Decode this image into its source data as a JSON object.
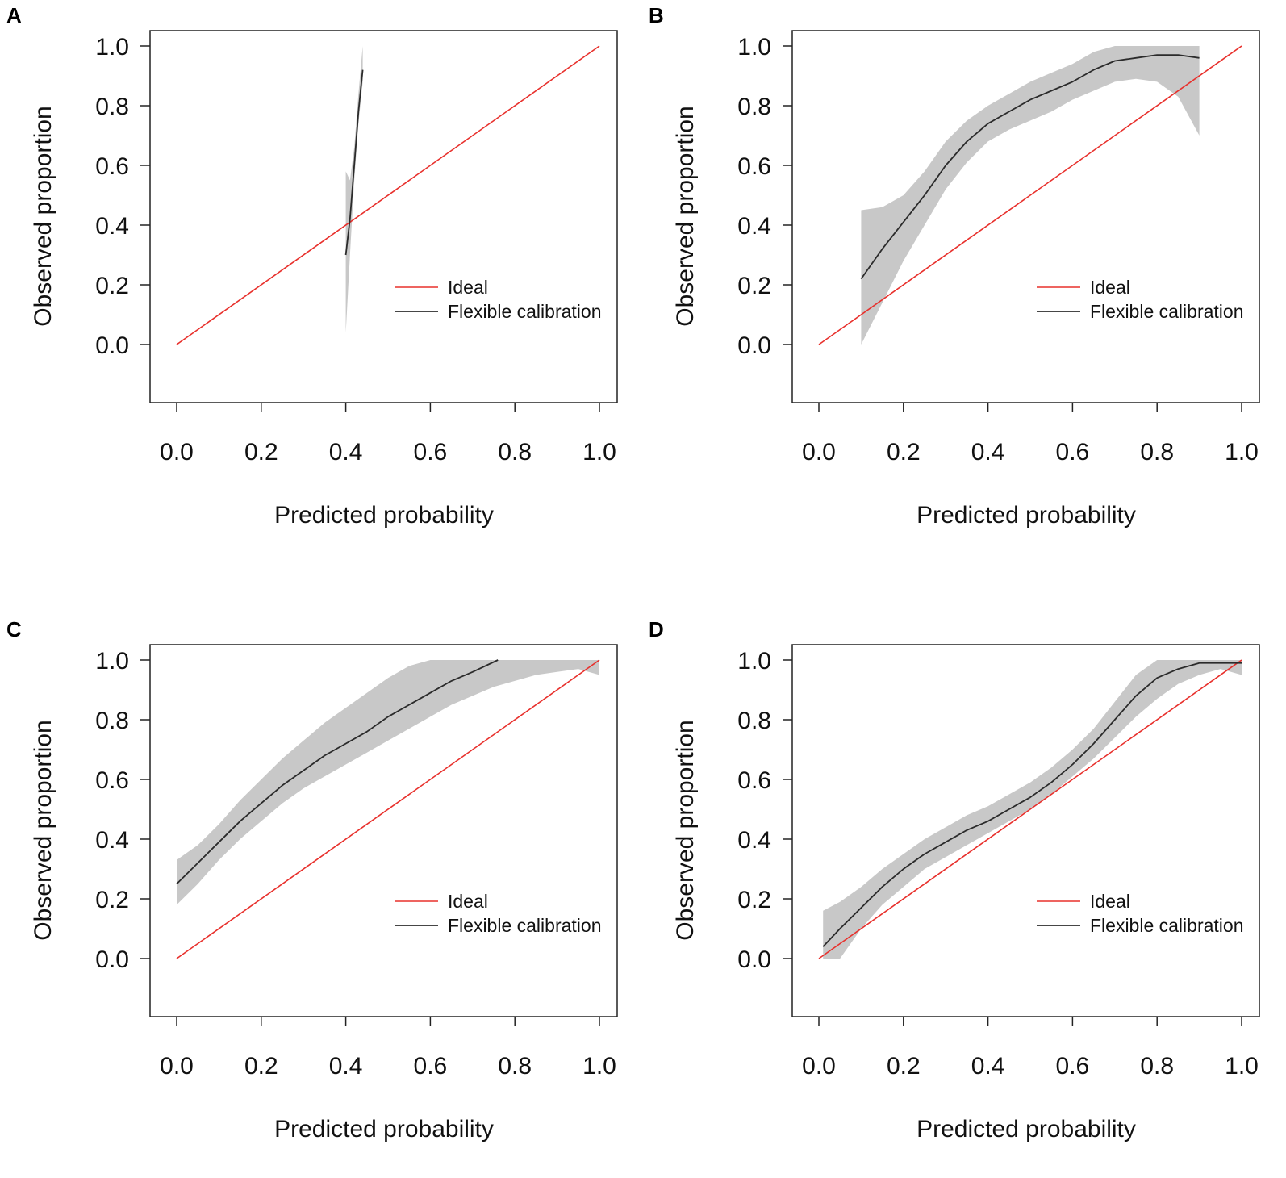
{
  "figure": {
    "colors": {
      "ideal": "#e8302c",
      "flexible": "#2b2b2b",
      "band": "#c8c8c8",
      "frame": "#222222"
    }
  },
  "chart_data": [
    {
      "panel": "A",
      "type": "line",
      "xlabel": "Predicted probability",
      "ylabel": "Observed proportion",
      "xlim": [
        -0.06,
        1.04
      ],
      "ylim": [
        -0.19,
        1.05
      ],
      "xticks": [
        "0.0",
        "0.2",
        "0.4",
        "0.6",
        "0.8",
        "1.0"
      ],
      "yticks": [
        "0.0",
        "0.2",
        "0.4",
        "0.6",
        "0.8",
        "1.0"
      ],
      "legend": {
        "position": "bottom-right",
        "entries": [
          "Ideal",
          "Flexible calibration"
        ]
      },
      "series": [
        {
          "name": "Ideal",
          "x": [
            0.0,
            1.0
          ],
          "y": [
            0.0,
            1.0
          ]
        },
        {
          "name": "Flexible calibration",
          "x": [
            0.4,
            0.41,
            0.42,
            0.43,
            0.44
          ],
          "y": [
            0.3,
            0.42,
            0.6,
            0.78,
            0.92
          ]
        },
        {
          "name": "confidence band",
          "x": [
            0.4,
            0.41,
            0.42,
            0.43,
            0.44
          ],
          "lower": [
            0.04,
            0.3,
            0.55,
            0.74,
            0.88
          ],
          "upper": [
            0.58,
            0.55,
            0.66,
            0.84,
            1.0
          ]
        }
      ]
    },
    {
      "panel": "B",
      "type": "line",
      "xlabel": "Predicted probability",
      "ylabel": "Observed proportion",
      "xlim": [
        -0.06,
        1.04
      ],
      "ylim": [
        -0.19,
        1.05
      ],
      "xticks": [
        "0.0",
        "0.2",
        "0.4",
        "0.6",
        "0.8",
        "1.0"
      ],
      "yticks": [
        "0.0",
        "0.2",
        "0.4",
        "0.6",
        "0.8",
        "1.0"
      ],
      "legend": {
        "position": "bottom-right",
        "entries": [
          "Ideal",
          "Flexible calibration"
        ]
      },
      "series": [
        {
          "name": "Ideal",
          "x": [
            0.0,
            1.0
          ],
          "y": [
            0.0,
            1.0
          ]
        },
        {
          "name": "Flexible calibration",
          "x": [
            0.1,
            0.15,
            0.2,
            0.25,
            0.3,
            0.35,
            0.4,
            0.45,
            0.5,
            0.55,
            0.6,
            0.65,
            0.7,
            0.75,
            0.8,
            0.85,
            0.9
          ],
          "y": [
            0.22,
            0.32,
            0.41,
            0.5,
            0.6,
            0.68,
            0.74,
            0.78,
            0.82,
            0.85,
            0.88,
            0.92,
            0.95,
            0.96,
            0.97,
            0.97,
            0.96
          ]
        },
        {
          "name": "confidence band",
          "x": [
            0.1,
            0.15,
            0.2,
            0.25,
            0.3,
            0.35,
            0.4,
            0.45,
            0.5,
            0.55,
            0.6,
            0.65,
            0.7,
            0.75,
            0.8,
            0.85,
            0.9
          ],
          "lower": [
            0.0,
            0.14,
            0.28,
            0.4,
            0.52,
            0.61,
            0.68,
            0.72,
            0.75,
            0.78,
            0.82,
            0.85,
            0.88,
            0.89,
            0.88,
            0.83,
            0.7
          ],
          "upper": [
            0.45,
            0.46,
            0.5,
            0.58,
            0.68,
            0.75,
            0.8,
            0.84,
            0.88,
            0.91,
            0.94,
            0.98,
            1.0,
            1.0,
            1.0,
            1.0,
            1.0
          ]
        }
      ]
    },
    {
      "panel": "C",
      "type": "line",
      "xlabel": "Predicted probability",
      "ylabel": "Observed proportion",
      "xlim": [
        -0.06,
        1.04
      ],
      "ylim": [
        -0.19,
        1.05
      ],
      "xticks": [
        "0.0",
        "0.2",
        "0.4",
        "0.6",
        "0.8",
        "1.0"
      ],
      "yticks": [
        "0.0",
        "0.2",
        "0.4",
        "0.6",
        "0.8",
        "1.0"
      ],
      "legend": {
        "position": "bottom-right",
        "entries": [
          "Ideal",
          "Flexible calibration"
        ]
      },
      "series": [
        {
          "name": "Ideal",
          "x": [
            0.0,
            1.0
          ],
          "y": [
            0.0,
            1.0
          ]
        },
        {
          "name": "Flexible calibration",
          "x": [
            0.0,
            0.05,
            0.1,
            0.15,
            0.2,
            0.25,
            0.3,
            0.35,
            0.4,
            0.45,
            0.5,
            0.55,
            0.6,
            0.65,
            0.7,
            0.76
          ],
          "y": [
            0.25,
            0.32,
            0.39,
            0.46,
            0.52,
            0.58,
            0.63,
            0.68,
            0.72,
            0.76,
            0.81,
            0.85,
            0.89,
            0.93,
            0.96,
            1.0
          ]
        },
        {
          "name": "confidence band",
          "x": [
            0.0,
            0.05,
            0.1,
            0.15,
            0.2,
            0.25,
            0.3,
            0.35,
            0.4,
            0.45,
            0.5,
            0.55,
            0.6,
            0.65,
            0.7,
            0.75,
            0.8,
            0.85,
            0.9,
            0.95,
            1.0
          ],
          "lower": [
            0.18,
            0.25,
            0.33,
            0.4,
            0.46,
            0.52,
            0.57,
            0.61,
            0.65,
            0.69,
            0.73,
            0.77,
            0.81,
            0.85,
            0.88,
            0.91,
            0.93,
            0.95,
            0.96,
            0.97,
            0.95
          ],
          "upper": [
            0.33,
            0.38,
            0.45,
            0.53,
            0.6,
            0.67,
            0.73,
            0.79,
            0.84,
            0.89,
            0.94,
            0.98,
            1.0,
            1.0,
            1.0,
            1.0,
            1.0,
            1.0,
            1.0,
            1.0,
            1.0
          ]
        }
      ]
    },
    {
      "panel": "D",
      "type": "line",
      "xlabel": "Predicted probability",
      "ylabel": "Observed proportion",
      "xlim": [
        -0.06,
        1.04
      ],
      "ylim": [
        -0.19,
        1.05
      ],
      "xticks": [
        "0.0",
        "0.2",
        "0.4",
        "0.6",
        "0.8",
        "1.0"
      ],
      "yticks": [
        "0.0",
        "0.2",
        "0.4",
        "0.6",
        "0.8",
        "1.0"
      ],
      "legend": {
        "position": "bottom-right",
        "entries": [
          "Ideal",
          "Flexible calibration"
        ]
      },
      "series": [
        {
          "name": "Ideal",
          "x": [
            0.0,
            1.0
          ],
          "y": [
            0.0,
            1.0
          ]
        },
        {
          "name": "Flexible calibration",
          "x": [
            0.01,
            0.05,
            0.1,
            0.15,
            0.2,
            0.25,
            0.3,
            0.35,
            0.4,
            0.45,
            0.5,
            0.55,
            0.6,
            0.65,
            0.7,
            0.75,
            0.8,
            0.85,
            0.9,
            0.95,
            1.0
          ],
          "y": [
            0.04,
            0.1,
            0.17,
            0.24,
            0.3,
            0.35,
            0.39,
            0.43,
            0.46,
            0.5,
            0.54,
            0.59,
            0.65,
            0.72,
            0.8,
            0.88,
            0.94,
            0.97,
            0.99,
            0.99,
            0.99
          ]
        },
        {
          "name": "confidence band",
          "x": [
            0.01,
            0.05,
            0.1,
            0.15,
            0.2,
            0.25,
            0.3,
            0.35,
            0.4,
            0.45,
            0.5,
            0.55,
            0.6,
            0.65,
            0.7,
            0.75,
            0.8,
            0.85,
            0.9,
            0.95,
            1.0
          ],
          "lower": [
            0.0,
            0.0,
            0.1,
            0.18,
            0.24,
            0.3,
            0.34,
            0.38,
            0.42,
            0.46,
            0.5,
            0.55,
            0.61,
            0.67,
            0.74,
            0.81,
            0.87,
            0.92,
            0.95,
            0.97,
            0.95
          ],
          "upper": [
            0.16,
            0.19,
            0.24,
            0.3,
            0.35,
            0.4,
            0.44,
            0.48,
            0.51,
            0.55,
            0.59,
            0.64,
            0.7,
            0.77,
            0.86,
            0.95,
            1.0,
            1.0,
            1.0,
            1.0,
            1.0
          ]
        }
      ]
    }
  ]
}
